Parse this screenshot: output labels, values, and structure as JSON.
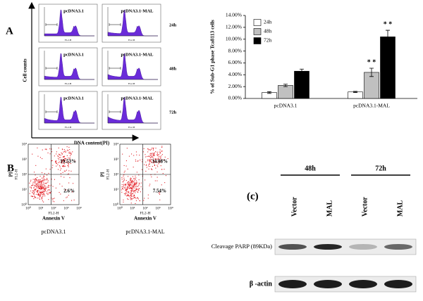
{
  "panel_a": {
    "label": "A",
    "y_axis_label": "Cell counts",
    "x_axis_label": "DNA content(PI)",
    "columns": [
      "pcDNA3.1",
      "pcDNA3.1-MAL"
    ],
    "rows": [
      "24h",
      "48h",
      "72h"
    ],
    "histogram_axis_label": "FL2-H"
  },
  "chart_data": {
    "type": "bar",
    "y_axis_label": "% of Sub-G1 phase Tca8113 cells",
    "categories": [
      "pcDNA3.1",
      "pcDNA3.1-MAL"
    ],
    "series": [
      {
        "name": "24h",
        "color": "#ffffff",
        "values": [
          1.0,
          1.1
        ],
        "errors": [
          0.15,
          0.1
        ]
      },
      {
        "name": "48h",
        "color": "#c0c0c0",
        "values": [
          2.2,
          4.4
        ],
        "errors": [
          0.2,
          0.7
        ]
      },
      {
        "name": "72h",
        "color": "#000000",
        "values": [
          4.6,
          10.4
        ],
        "errors": [
          0.35,
          1.1
        ]
      }
    ],
    "ylim": [
      0,
      14
    ],
    "yticks": [
      {
        "value": 0,
        "label": "0.00%"
      },
      {
        "value": 2,
        "label": "2.00%"
      },
      {
        "value": 4,
        "label": "4.00%"
      },
      {
        "value": 6,
        "label": "6.00%"
      },
      {
        "value": 8,
        "label": "8.00%"
      },
      {
        "value": 10,
        "label": "10.00%"
      },
      {
        "value": 12,
        "label": "12.00%"
      },
      {
        "value": 14,
        "label": "14.00%"
      }
    ],
    "legend": "top-left",
    "annotations": [
      {
        "text": "* *",
        "series": 1,
        "category": 1
      },
      {
        "text": "* *",
        "series": 2,
        "category": 1
      }
    ]
  },
  "panel_b": {
    "label": "B",
    "y_axis_label": "PI",
    "x_axis_label": "Annexin V",
    "channel_label": "FL2-H",
    "ticks": [
      "10⁰",
      "10¹",
      "10²",
      "10³",
      "10⁴"
    ],
    "plots": [
      {
        "caption": "pcDNA3.1",
        "upper_right": "19.53%",
        "lower_right": "2.6%"
      },
      {
        "caption": "pcDNA3.1-MAL",
        "upper_right": "34.08%",
        "lower_right": "7.54%"
      }
    ]
  },
  "panel_c": {
    "label": "(c)",
    "time_groups": [
      "48h",
      "72h"
    ],
    "lanes": [
      "Vector",
      "MAL",
      "Vector",
      "MAL"
    ],
    "blots": [
      "Cleavage PARP (89KDa)",
      "β -actin"
    ]
  }
}
